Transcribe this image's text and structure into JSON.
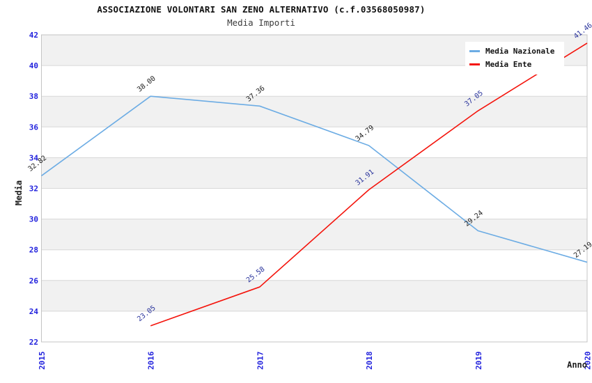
{
  "header": {
    "title": "ASSOCIAZIONE VOLONTARI SAN ZENO ALTERNATIVO (c.f.03568050987)",
    "subtitle": "Media Importi"
  },
  "chart_data": {
    "type": "line",
    "title": "ASSOCIAZIONE VOLONTARI SAN ZENO ALTERNATIVO (c.f.03568050987)",
    "subtitle": "Media Importi",
    "xlabel": "Anno",
    "ylabel": "Media",
    "categories": [
      "2015",
      "2016",
      "2017",
      "2018",
      "2019",
      "2020"
    ],
    "ylim": [
      22,
      42
    ],
    "ytick_step": 2,
    "yticks": [
      22,
      24,
      26,
      28,
      30,
      32,
      34,
      36,
      38,
      40,
      42
    ],
    "grid": "horizontal-bands",
    "legend_position": "top-right",
    "series": [
      {
        "name": "Media Nazionale",
        "color": "#6cace4",
        "label_color": "#1b1b1b",
        "x": [
          "2015",
          "2016",
          "2017",
          "2018",
          "2019",
          "2020"
        ],
        "values": [
          32.82,
          38.0,
          37.36,
          34.79,
          29.24,
          27.19
        ],
        "labels": [
          "32.82",
          "38.00",
          "37.36",
          "34.79",
          "29.24",
          "27.19"
        ]
      },
      {
        "name": "Media Ente",
        "color": "#f4140c",
        "label_color": "#27319b",
        "x": [
          "2016",
          "2017",
          "2018",
          "2019",
          "2020"
        ],
        "values": [
          23.05,
          25.58,
          31.91,
          37.05,
          41.46
        ],
        "labels": [
          "23.05",
          "25.58",
          "31.91",
          "37.05",
          "41.46"
        ]
      }
    ]
  },
  "colors": {
    "tick_label": "#2222dd",
    "band": "#f1f1f1",
    "grid": "#d7d7d7",
    "plot_border": "#c4c4c4",
    "axis_title": "#1c1c1c",
    "legend_bg": "#ffffff"
  }
}
